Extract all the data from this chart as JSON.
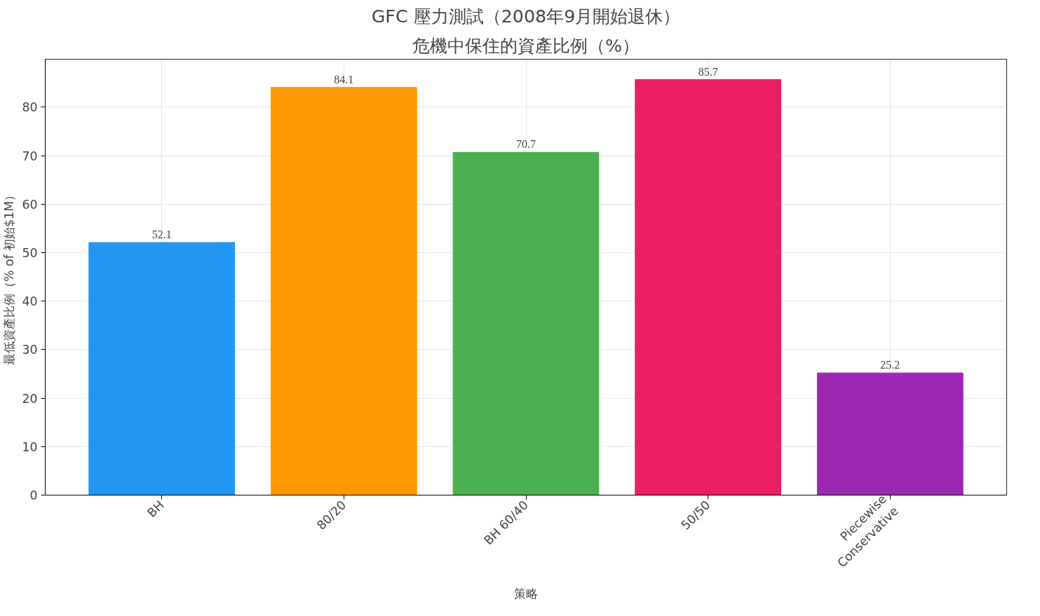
{
  "chart_data": {
    "type": "bar",
    "title": "GFC 壓力測試（2008年9月開始退休）",
    "subtitle": "危機中保住的資產比例（%）",
    "xlabel": "策略",
    "ylabel": "最低資產比例（% of 初始$1M）",
    "categories": [
      "BH",
      "80/20",
      "BH 60/40",
      "50/50",
      "Piecewise\nConservative"
    ],
    "values": [
      52.1,
      84.1,
      70.7,
      85.7,
      25.2
    ],
    "colors": [
      "#2196f3",
      "#ff9800",
      "#4caf50",
      "#e91e63",
      "#9c27b0"
    ],
    "ylim": [
      0,
      89.9
    ],
    "yticks": [
      0,
      10,
      20,
      30,
      40,
      50,
      60,
      70,
      80
    ],
    "grid": true,
    "data_labels": true
  }
}
